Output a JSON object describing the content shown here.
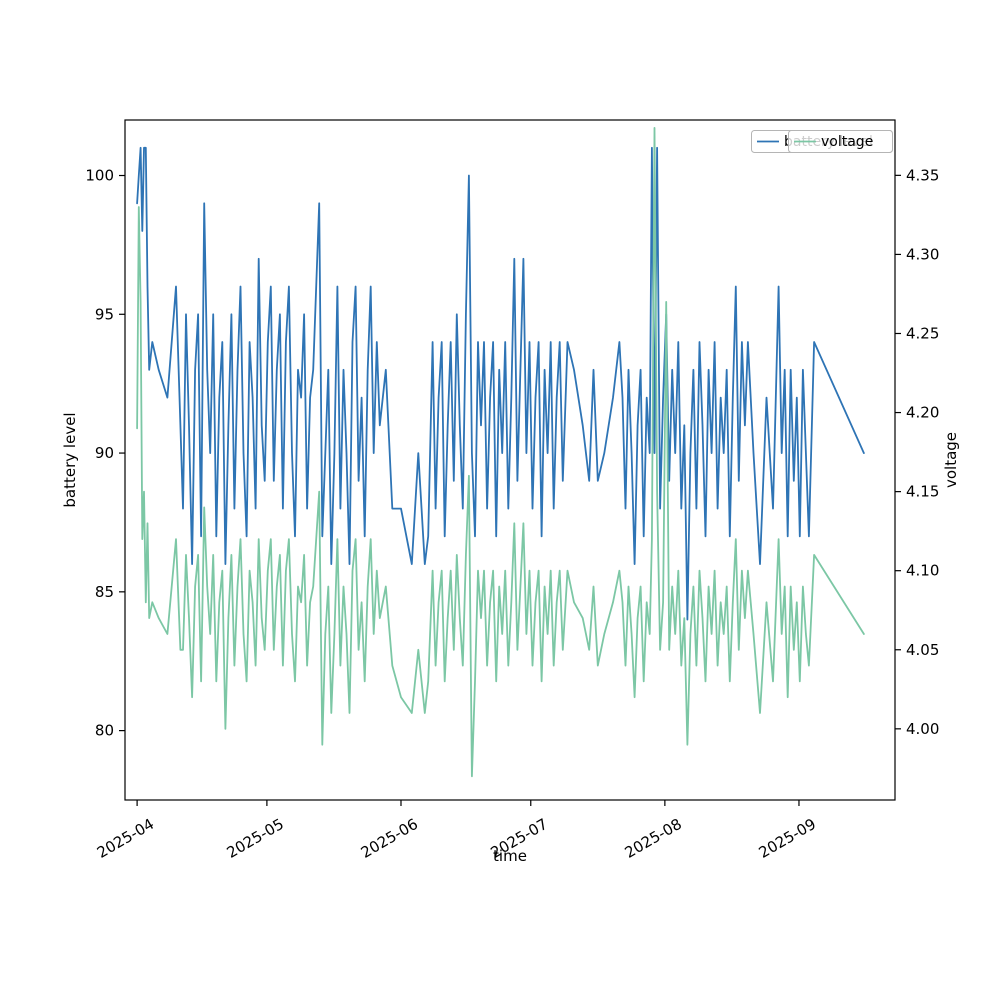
{
  "chart_data": {
    "type": "line",
    "title": "",
    "xlabel": "time",
    "ylabel_left": "battery level",
    "ylabel_right": "voltage",
    "x_unit": "days since 2025-04-01",
    "x_lim": [
      -2.8,
      175.2
    ],
    "x_ticks": [
      {
        "t": 0,
        "label": "2025-04"
      },
      {
        "t": 30,
        "label": "2025-05"
      },
      {
        "t": 61,
        "label": "2025-06"
      },
      {
        "t": 91,
        "label": "2025-07"
      },
      {
        "t": 122,
        "label": "2025-08"
      },
      {
        "t": 153,
        "label": "2025-09"
      }
    ],
    "y_left": {
      "lim": [
        77.5,
        102
      ],
      "ticks": [
        80,
        85,
        90,
        95,
        100
      ],
      "tick_labels": [
        "80",
        "85",
        "90",
        "95",
        "100"
      ]
    },
    "y_right": {
      "lim": [
        3.955,
        4.385
      ],
      "ticks": [
        4.0,
        4.05,
        4.1,
        4.15,
        4.2,
        4.25,
        4.3,
        4.35
      ],
      "tick_labels": [
        "4.00",
        "4.05",
        "4.10",
        "4.15",
        "4.20",
        "4.25",
        "4.30",
        "4.35"
      ]
    },
    "grid": false,
    "legend": {
      "position": "upper right",
      "battery_label": "battery level",
      "voltage_label": "voltage"
    },
    "x": [
      0,
      0.4,
      0.8,
      1.2,
      1.6,
      2,
      2.4,
      2.8,
      3.5,
      5,
      7,
      9,
      10,
      10.6,
      11.3,
      12,
      12.7,
      13.4,
      14.1,
      14.8,
      15.5,
      16.2,
      16.9,
      17.6,
      18.3,
      19,
      19.7,
      20.4,
      21.1,
      21.8,
      22.5,
      23.2,
      23.9,
      24.6,
      25.3,
      26,
      26.7,
      27.4,
      28.1,
      28.8,
      29.5,
      30.2,
      30.9,
      31.6,
      32.3,
      33,
      33.7,
      34.4,
      35.1,
      35.8,
      36.5,
      37.2,
      37.9,
      38.6,
      39.3,
      40,
      40.7,
      41.4,
      42.1,
      42.8,
      43.5,
      44.2,
      44.9,
      45.6,
      46.3,
      47,
      47.7,
      48.4,
      49.1,
      49.8,
      50.5,
      51.2,
      51.9,
      52.6,
      53.3,
      54,
      54.7,
      55.4,
      56.1,
      57.5,
      59,
      61,
      63.5,
      65,
      66.5,
      67.3,
      68.3,
      69,
      69.7,
      70.4,
      71.1,
      71.8,
      72.5,
      73.2,
      73.9,
      74.6,
      75.3,
      76,
      76.7,
      77.4,
      78.1,
      78.8,
      79.5,
      80.2,
      80.9,
      81.6,
      82.3,
      83,
      83.7,
      84.4,
      85.1,
      85.8,
      86.5,
      87.2,
      87.9,
      88.6,
      89.3,
      90,
      90.7,
      91.4,
      92.1,
      92.8,
      93.5,
      94.2,
      94.9,
      95.6,
      96.3,
      97,
      97.7,
      98.4,
      99.5,
      101,
      103,
      104.5,
      105.5,
      106.5,
      108,
      110,
      111.5,
      112.2,
      112.9,
      113.6,
      114.3,
      115,
      115.7,
      116.4,
      117.1,
      117.8,
      118.5,
      119,
      119.6,
      120.2,
      120.9,
      121.6,
      122.3,
      123,
      123.7,
      124.4,
      125.1,
      125.8,
      126.5,
      127.2,
      127.9,
      128.6,
      129.3,
      130,
      130.7,
      131.4,
      132.1,
      132.8,
      133.5,
      134.2,
      134.9,
      135.6,
      136.3,
      137,
      137.7,
      138.4,
      139.1,
      139.8,
      140.5,
      141.2,
      142.5,
      144,
      145.5,
      147,
      148.3,
      149,
      149.7,
      150.4,
      151.1,
      151.8,
      152.5,
      153.2,
      153.9,
      154.6,
      155.3,
      156.5,
      168
    ],
    "series": [
      {
        "name": "battery level",
        "axis": "left",
        "color": "#2e74b5",
        "values": [
          99,
          100,
          101,
          98,
          101,
          101,
          96,
          93,
          94,
          93,
          92,
          96,
          91,
          88,
          95,
          91,
          86,
          93,
          95,
          87,
          99,
          93,
          90,
          95,
          87,
          92,
          94,
          86,
          91,
          95,
          88,
          93,
          96,
          90,
          87,
          94,
          92,
          88,
          97,
          91,
          89,
          94,
          96,
          89,
          93,
          95,
          88,
          94,
          96,
          90,
          87,
          93,
          92,
          95,
          88,
          92,
          93,
          96,
          99,
          87,
          90,
          93,
          86,
          90,
          96,
          88,
          93,
          90,
          86,
          94,
          96,
          89,
          92,
          87,
          93,
          96,
          90,
          94,
          91,
          93,
          88,
          88,
          86,
          90,
          86,
          87,
          94,
          88,
          92,
          94,
          87,
          91,
          94,
          89,
          95,
          91,
          88,
          95,
          100,
          90,
          87,
          94,
          91,
          94,
          88,
          92,
          94,
          87,
          93,
          90,
          94,
          88,
          92,
          97,
          89,
          93,
          97,
          90,
          94,
          88,
          92,
          94,
          87,
          93,
          90,
          94,
          88,
          92,
          94,
          89,
          94,
          93,
          91,
          89,
          93,
          89,
          90,
          92,
          94,
          92,
          88,
          93,
          90,
          86,
          91,
          93,
          87,
          92,
          90,
          101,
          90,
          101,
          88,
          92,
          95,
          89,
          93,
          90,
          94,
          88,
          91,
          84,
          90,
          93,
          88,
          94,
          91,
          87,
          93,
          90,
          94,
          88,
          92,
          90,
          93,
          87,
          92,
          96,
          89,
          94,
          91,
          94,
          90,
          86,
          92,
          88,
          96,
          90,
          93,
          87,
          93,
          89,
          92,
          87,
          93,
          90,
          87,
          94,
          90
        ]
      },
      {
        "name": "voltage",
        "axis": "right",
        "color": "#7cc7a5",
        "values": [
          4.19,
          4.33,
          4.27,
          4.12,
          4.15,
          4.08,
          4.13,
          4.07,
          4.08,
          4.07,
          4.06,
          4.12,
          4.05,
          4.05,
          4.11,
          4.07,
          4.02,
          4.09,
          4.11,
          4.03,
          4.14,
          4.09,
          4.06,
          4.11,
          4.03,
          4.08,
          4.1,
          4.0,
          4.07,
          4.11,
          4.04,
          4.09,
          4.12,
          4.06,
          4.03,
          4.1,
          4.08,
          4.04,
          4.12,
          4.07,
          4.05,
          4.1,
          4.12,
          4.05,
          4.09,
          4.11,
          4.04,
          4.1,
          4.12,
          4.06,
          4.03,
          4.09,
          4.08,
          4.11,
          4.04,
          4.08,
          4.09,
          4.12,
          4.15,
          3.99,
          4.06,
          4.09,
          4.01,
          4.06,
          4.12,
          4.04,
          4.09,
          4.06,
          4.01,
          4.1,
          4.12,
          4.05,
          4.08,
          4.03,
          4.09,
          4.12,
          4.06,
          4.1,
          4.07,
          4.09,
          4.04,
          4.02,
          4.01,
          4.05,
          4.01,
          4.03,
          4.1,
          4.04,
          4.08,
          4.1,
          4.03,
          4.07,
          4.1,
          4.05,
          4.11,
          4.07,
          4.04,
          4.11,
          4.16,
          3.97,
          4.03,
          4.1,
          4.07,
          4.1,
          4.04,
          4.08,
          4.1,
          4.03,
          4.09,
          4.06,
          4.1,
          4.04,
          4.08,
          4.13,
          4.05,
          4.09,
          4.13,
          4.06,
          4.1,
          4.04,
          4.08,
          4.1,
          4.03,
          4.09,
          4.06,
          4.1,
          4.04,
          4.08,
          4.1,
          4.05,
          4.1,
          4.08,
          4.07,
          4.05,
          4.09,
          4.04,
          4.06,
          4.08,
          4.1,
          4.08,
          4.04,
          4.09,
          4.06,
          4.02,
          4.07,
          4.09,
          4.03,
          4.08,
          4.06,
          4.12,
          4.38,
          4.15,
          4.05,
          4.08,
          4.27,
          4.05,
          4.09,
          4.06,
          4.1,
          4.04,
          4.07,
          3.99,
          4.06,
          4.09,
          4.04,
          4.1,
          4.07,
          4.03,
          4.09,
          4.06,
          4.1,
          4.04,
          4.08,
          4.06,
          4.09,
          4.03,
          4.08,
          4.12,
          4.05,
          4.1,
          4.07,
          4.1,
          4.06,
          4.01,
          4.08,
          4.03,
          4.12,
          4.06,
          4.09,
          4.02,
          4.09,
          4.05,
          4.08,
          4.03,
          4.09,
          4.06,
          4.04,
          4.11,
          4.06
        ]
      }
    ]
  }
}
